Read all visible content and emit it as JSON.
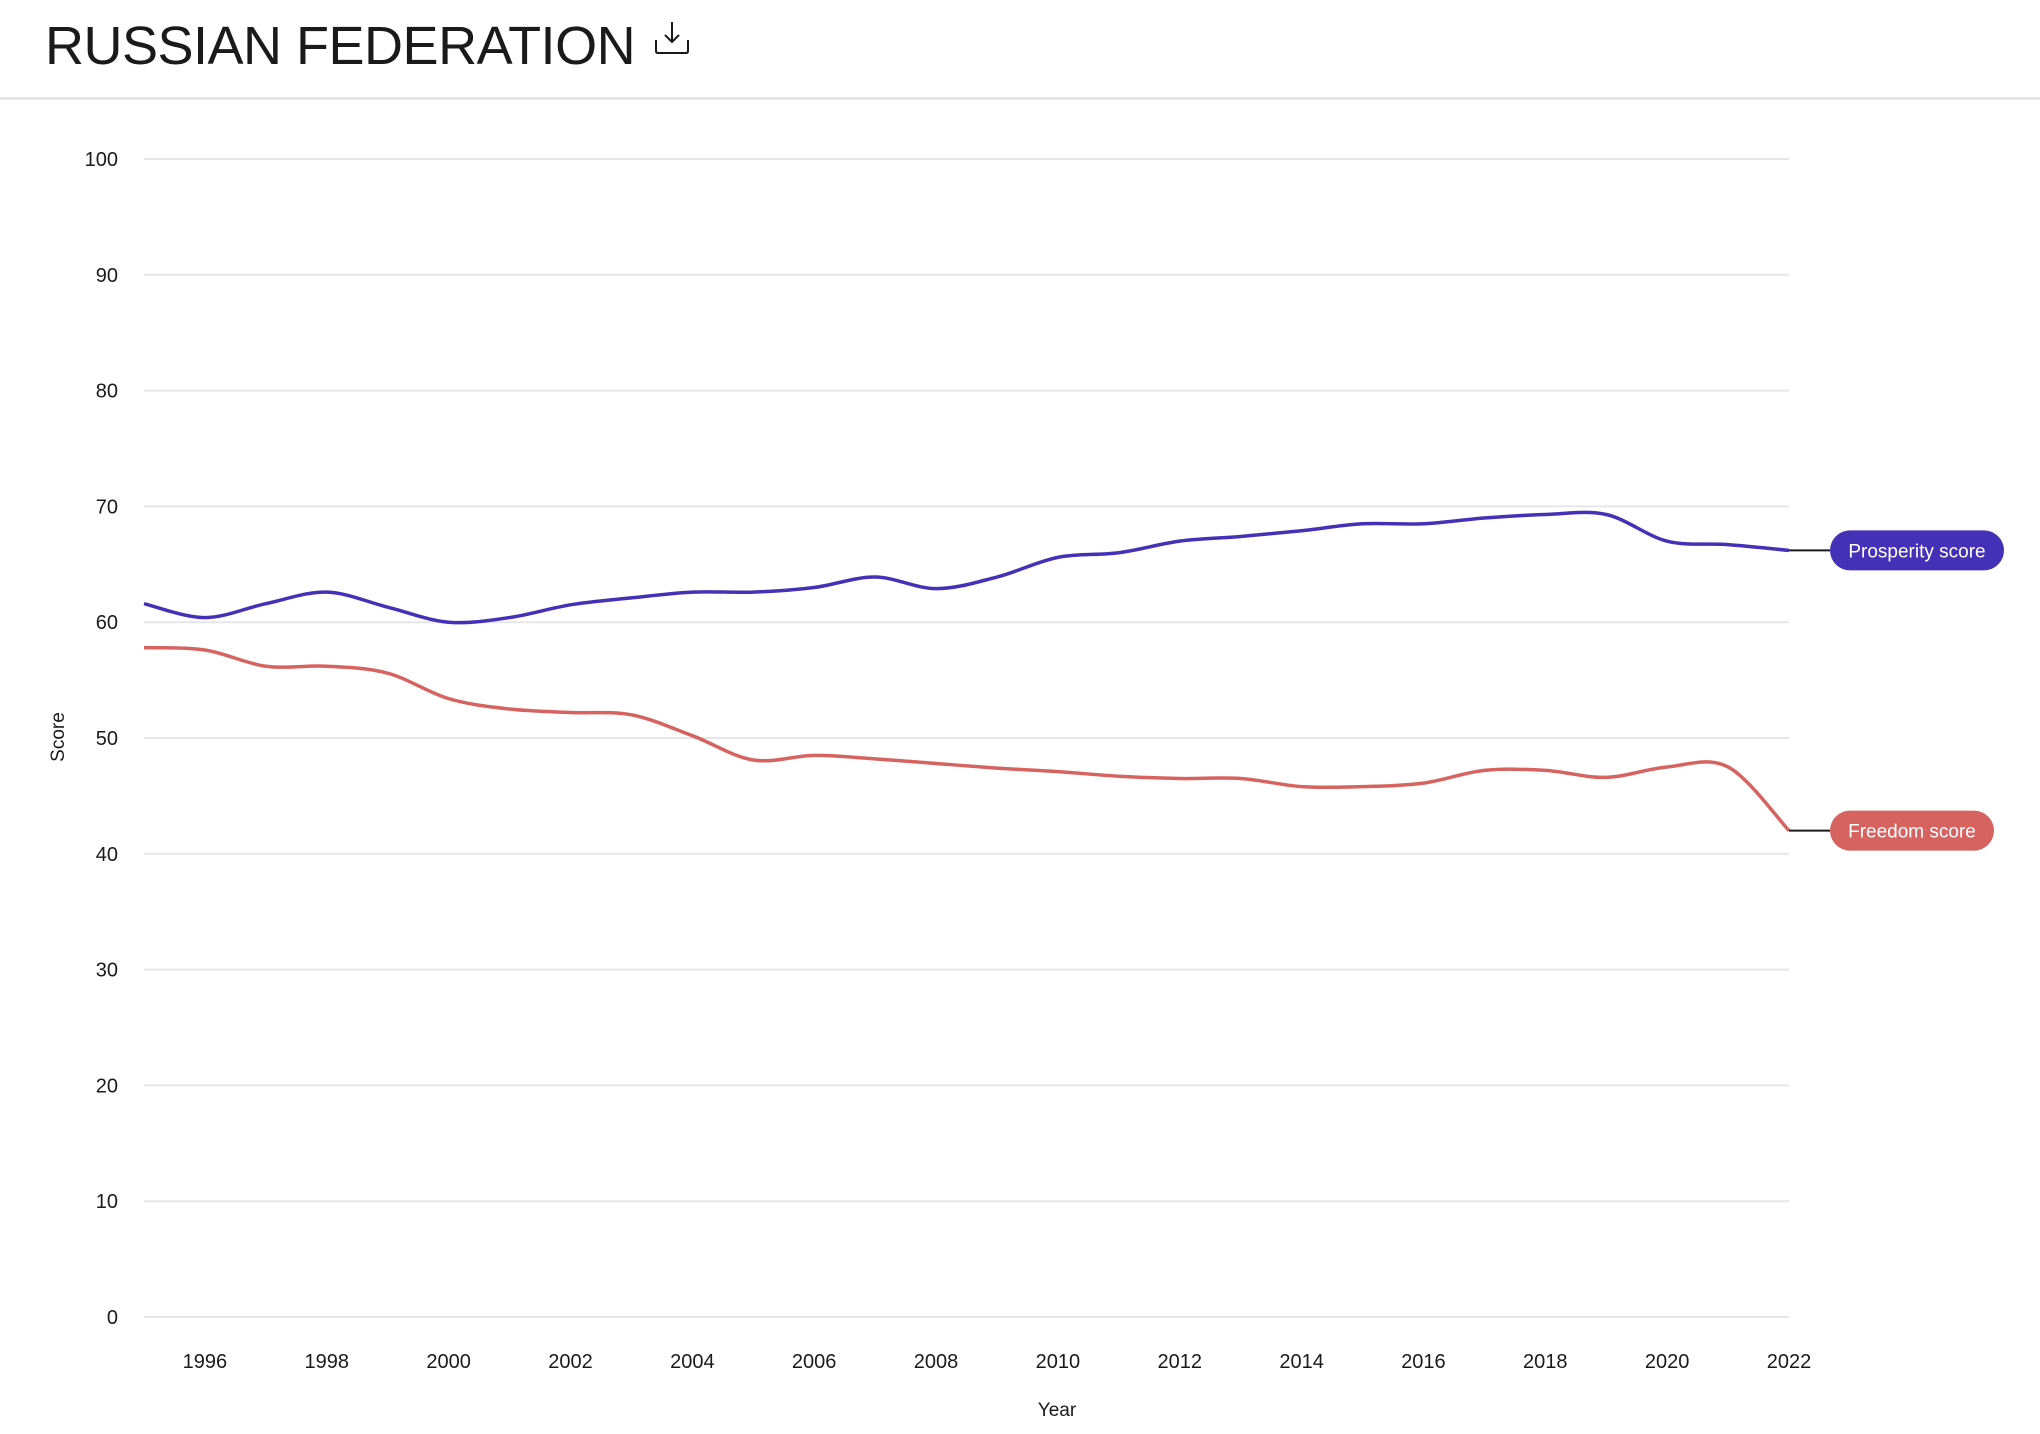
{
  "header": {
    "title": "RUSSIAN FEDERATION",
    "download_icon": "download-icon"
  },
  "chart_data": {
    "type": "line",
    "title": "",
    "xlabel": "Year",
    "ylabel": "Score",
    "xlim": [
      1995,
      2022
    ],
    "ylim": [
      0,
      100
    ],
    "yticks": [
      "0",
      "10",
      "20",
      "30",
      "40",
      "50",
      "60",
      "70",
      "80",
      "90",
      "100"
    ],
    "xticks": [
      "1996",
      "1998",
      "2000",
      "2002",
      "2004",
      "2006",
      "2008",
      "2010",
      "2012",
      "2014",
      "2016",
      "2018",
      "2020",
      "2022"
    ],
    "grid": true,
    "x": [
      1995,
      1996,
      1997,
      1998,
      1999,
      2000,
      2001,
      2002,
      2003,
      2004,
      2005,
      2006,
      2007,
      2008,
      2009,
      2010,
      2011,
      2012,
      2013,
      2014,
      2015,
      2016,
      2017,
      2018,
      2019,
      2020,
      2021,
      2022
    ],
    "series": [
      {
        "name": "Prosperity score",
        "color": "#4530b8",
        "values": [
          61.6,
          60.4,
          61.6,
          62.6,
          61.3,
          60.0,
          60.4,
          61.5,
          62.1,
          62.6,
          62.6,
          63.0,
          63.9,
          62.9,
          63.9,
          65.6,
          66.0,
          67.0,
          67.4,
          67.9,
          68.5,
          68.5,
          69.0,
          69.3,
          69.3,
          67.0,
          66.7,
          66.2
        ]
      },
      {
        "name": "Freedom score",
        "color": "#d66360",
        "values": [
          57.8,
          57.6,
          56.2,
          56.2,
          55.6,
          53.4,
          52.5,
          52.2,
          52.0,
          50.2,
          48.1,
          48.5,
          48.2,
          47.8,
          47.4,
          47.1,
          46.7,
          46.5,
          46.5,
          45.8,
          45.8,
          46.1,
          47.2,
          47.2,
          46.6,
          47.5,
          47.5,
          42.0
        ]
      }
    ],
    "legend": "end-of-line labels"
  }
}
